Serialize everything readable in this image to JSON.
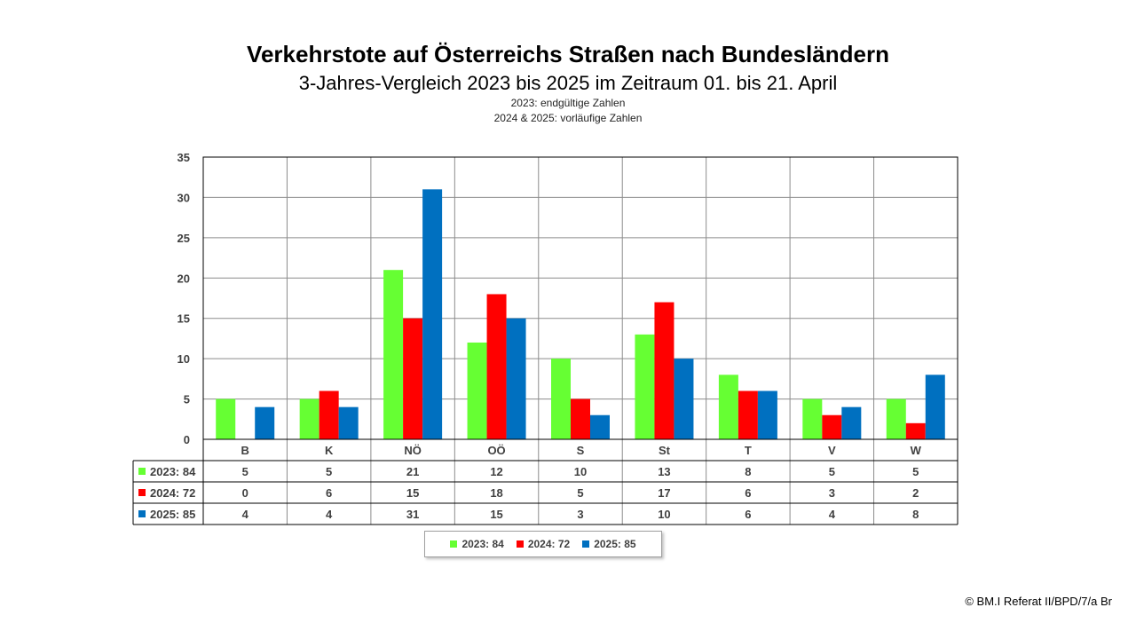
{
  "header": {
    "title": "Verkehrstote auf Österreichs Straßen nach Bundesländern",
    "subtitle": "3-Jahres-Vergleich 2023 bis 2025 im Zeitraum 01. bis 21. April",
    "note1": "2023: endgültige Zahlen",
    "note2": "2024 & 2025: vorläufige Zahlen"
  },
  "chart_data": {
    "type": "bar",
    "categories": [
      "B",
      "K",
      "NÖ",
      "OÖ",
      "S",
      "St",
      "T",
      "V",
      "W"
    ],
    "series": [
      {
        "name": "2023: 84",
        "color": "#66ff33",
        "values": [
          5,
          5,
          21,
          12,
          10,
          13,
          8,
          5,
          5
        ]
      },
      {
        "name": "2024: 72",
        "color": "#ff0000",
        "values": [
          0,
          6,
          15,
          18,
          5,
          17,
          6,
          3,
          2
        ]
      },
      {
        "name": "2025: 85",
        "color": "#0070c0",
        "values": [
          4,
          4,
          31,
          15,
          3,
          10,
          6,
          4,
          8
        ]
      }
    ],
    "ylim": [
      0,
      35
    ],
    "yticks": [
      0,
      5,
      10,
      15,
      20,
      25,
      30,
      35
    ],
    "grid": true,
    "data_table": true,
    "legend": "bottom"
  },
  "credit": "© BM.I Referat II/BPD/7/a Br"
}
